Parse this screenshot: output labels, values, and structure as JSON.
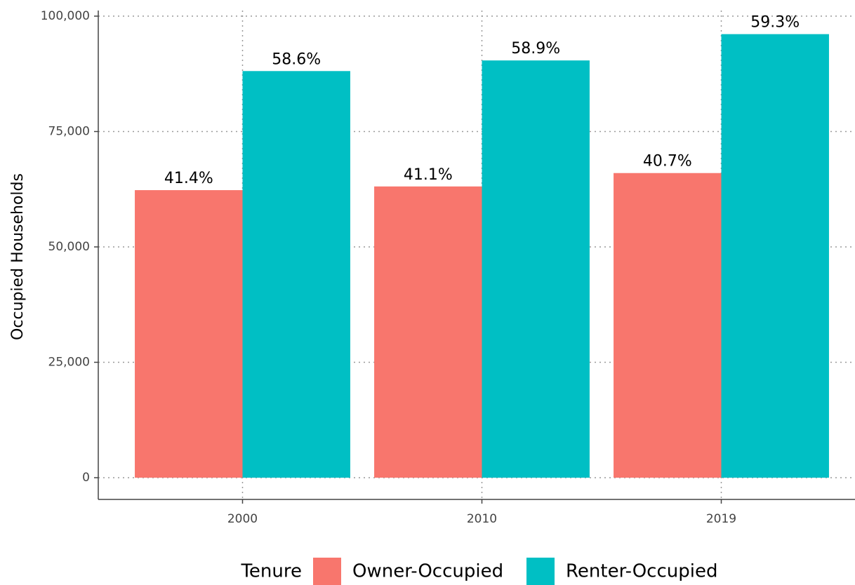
{
  "chart_data": {
    "type": "bar",
    "y_label": "Occupied Households",
    "categories": [
      "2000",
      "2010",
      "2019"
    ],
    "series": [
      {
        "name": "Owner-Occupied",
        "color": "#f8766d",
        "values": [
          62300,
          63100,
          66000
        ],
        "value_labels": [
          "41.4%",
          "41.1%",
          "40.7%"
        ]
      },
      {
        "name": "Renter-Occupied",
        "color": "#00bfc4",
        "values": [
          88100,
          90400,
          96100
        ],
        "value_labels": [
          "58.6%",
          "58.9%",
          "59.3%"
        ]
      }
    ],
    "ylim": [
      0,
      100000
    ],
    "yticks": [
      0,
      {
        "value": 25000,
        "label": "25,000"
      },
      {
        "value": 50000,
        "label": "50,000"
      },
      {
        "value": 75000,
        "label": "75,000"
      },
      {
        "value": 100000,
        "label": "100,000"
      }
    ],
    "grid": true,
    "legend_title": "Tenure",
    "legend_position": "bottom"
  }
}
